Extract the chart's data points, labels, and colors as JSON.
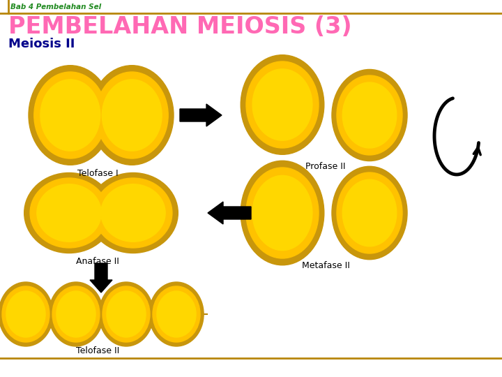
{
  "title_small": "Bab 4 Pembelahan Sel",
  "title_large": "PEMBELAHAN MEIOSIS (3)",
  "subtitle": "Meiosis II",
  "labels": {
    "telofase1": "Telofase I",
    "profase2": "Profase II",
    "anafase2": "Anafase II",
    "metafase2": "Metafase II",
    "telofase2": "Telofase II"
  },
  "colors": {
    "title_small": "#228B22",
    "title_large": "#FF69B4",
    "subtitle": "#00008B",
    "label_text": "#000000",
    "header_line": "#B8860B",
    "bottom_line": "#B8860B",
    "background": "#FFFFFF",
    "cell_border": "#C8960C",
    "cell_mid": "#FFC200",
    "cell_inner": "#FFD700",
    "arrow_black": "#000000"
  }
}
